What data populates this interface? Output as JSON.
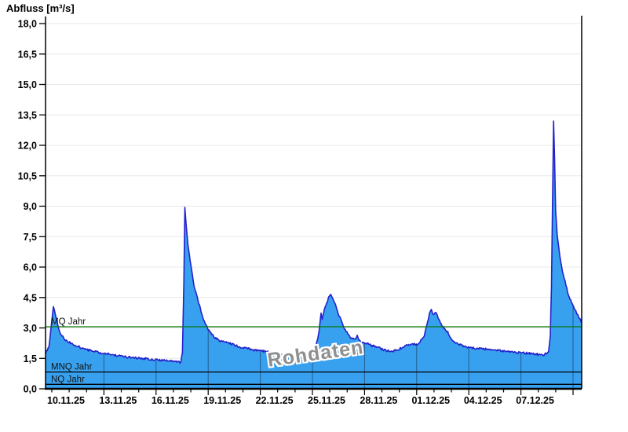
{
  "watermark": "Rohdaten",
  "colors": {
    "background": "#ffffff",
    "grid_horizontal": "#e8e8e8",
    "axis": "#000000",
    "area_fill": "#38a1ef",
    "area_line": "#2222cc",
    "inner_vertical_line": "#1b3f63",
    "mq_line_green": "#067806",
    "reference_black": "#000000",
    "watermark_gray": "#8f8f8f"
  },
  "chart_data": {
    "type": "area",
    "title": "Abfluss [m³/s]",
    "ylabel": "Abfluss [m³/s]",
    "xlabel": "",
    "ylim": [
      0,
      18
    ],
    "y_tick_step": 1.5,
    "y_tick_labels": [
      "0,0",
      "1,5",
      "3,0",
      "4,5",
      "6,0",
      "7,5",
      "9,0",
      "10,5",
      "12,0",
      "13,5",
      "15,0",
      "16,5",
      "18,0"
    ],
    "x_tick_labels": [
      "10.11.25",
      "13.11.25",
      "16.11.25",
      "19.11.25",
      "22.11.25",
      "25.11.25",
      "28.11.25",
      "01.12.25",
      "04.12.25",
      "07.12.25"
    ],
    "x_label_spacing_days": 3,
    "x_days_total": 30.86,
    "grid": "horizontal-only",
    "legend": "none",
    "reference_lines": [
      {
        "label": "MQ Jahr",
        "value": 3.06,
        "color": "#067806"
      },
      {
        "label": "MNQ Jahr",
        "value": 0.83,
        "color": "#000000"
      },
      {
        "label": "NQ Jahr",
        "value": 0.22,
        "color": "#000000"
      }
    ],
    "series": [
      {
        "name": "Abfluss",
        "unit": "m³/s",
        "points": [
          [
            0,
            1.75
          ],
          [
            0.2,
            2.1
          ],
          [
            0.32,
            3.0
          ],
          [
            0.45,
            4.05
          ],
          [
            0.55,
            3.7
          ],
          [
            0.68,
            3.2
          ],
          [
            0.8,
            2.85
          ],
          [
            0.95,
            2.6
          ],
          [
            1.1,
            2.45
          ],
          [
            1.35,
            2.3
          ],
          [
            1.7,
            2.15
          ],
          [
            2.1,
            2.0
          ],
          [
            2.6,
            1.87
          ],
          [
            3.1,
            1.78
          ],
          [
            3.7,
            1.7
          ],
          [
            4.4,
            1.6
          ],
          [
            5.1,
            1.52
          ],
          [
            5.9,
            1.47
          ],
          [
            6.7,
            1.42
          ],
          [
            7.3,
            1.37
          ],
          [
            7.6,
            1.33
          ],
          [
            7.78,
            1.32
          ],
          [
            7.88,
            1.8
          ],
          [
            7.96,
            5.2
          ],
          [
            8.02,
            8.97
          ],
          [
            8.1,
            8.0
          ],
          [
            8.2,
            7.1
          ],
          [
            8.32,
            6.35
          ],
          [
            8.45,
            5.65
          ],
          [
            8.55,
            5.1
          ],
          [
            8.65,
            4.8
          ],
          [
            8.78,
            4.35
          ],
          [
            8.9,
            4.0
          ],
          [
            9.05,
            3.5
          ],
          [
            9.25,
            3.1
          ],
          [
            9.42,
            2.85
          ],
          [
            9.65,
            2.6
          ],
          [
            9.85,
            2.45
          ],
          [
            10.1,
            2.35
          ],
          [
            10.45,
            2.3
          ],
          [
            10.75,
            2.2
          ],
          [
            11.05,
            2.1
          ],
          [
            11.5,
            2.0
          ],
          [
            12.1,
            1.9
          ],
          [
            12.75,
            1.82
          ],
          [
            13.3,
            1.75
          ],
          [
            13.9,
            1.7
          ],
          [
            14.5,
            1.65
          ],
          [
            15.0,
            1.63
          ],
          [
            15.25,
            1.65
          ],
          [
            15.45,
            1.9
          ],
          [
            15.62,
            2.3
          ],
          [
            15.75,
            2.9
          ],
          [
            15.86,
            3.75
          ],
          [
            15.92,
            3.4
          ],
          [
            16.05,
            3.9
          ],
          [
            16.18,
            4.2
          ],
          [
            16.3,
            4.5
          ],
          [
            16.4,
            4.63
          ],
          [
            16.52,
            4.45
          ],
          [
            16.67,
            4.15
          ],
          [
            16.8,
            3.85
          ],
          [
            16.95,
            3.5
          ],
          [
            17.1,
            3.2
          ],
          [
            17.25,
            2.9
          ],
          [
            17.45,
            2.65
          ],
          [
            17.6,
            2.5
          ],
          [
            17.8,
            2.4
          ],
          [
            17.94,
            2.62
          ],
          [
            18.05,
            2.35
          ],
          [
            18.25,
            2.28
          ],
          [
            18.6,
            2.2
          ],
          [
            19.05,
            2.05
          ],
          [
            19.5,
            1.92
          ],
          [
            19.85,
            1.85
          ],
          [
            20.2,
            1.9
          ],
          [
            20.55,
            2.05
          ],
          [
            20.85,
            2.15
          ],
          [
            21.1,
            2.22
          ],
          [
            21.35,
            2.18
          ],
          [
            21.55,
            2.3
          ],
          [
            21.8,
            2.6
          ],
          [
            21.95,
            3.15
          ],
          [
            22.1,
            3.7
          ],
          [
            22.2,
            3.88
          ],
          [
            22.32,
            3.65
          ],
          [
            22.42,
            3.8
          ],
          [
            22.55,
            3.6
          ],
          [
            22.68,
            3.35
          ],
          [
            22.9,
            3.0
          ],
          [
            23.15,
            2.8
          ],
          [
            23.36,
            2.45
          ],
          [
            23.6,
            2.3
          ],
          [
            23.95,
            2.15
          ],
          [
            24.3,
            2.05
          ],
          [
            24.7,
            2.0
          ],
          [
            25.2,
            1.97
          ],
          [
            25.6,
            1.92
          ],
          [
            26.3,
            1.87
          ],
          [
            27.0,
            1.8
          ],
          [
            27.7,
            1.75
          ],
          [
            28.3,
            1.7
          ],
          [
            28.7,
            1.68
          ],
          [
            28.95,
            1.8
          ],
          [
            29.05,
            2.6
          ],
          [
            29.12,
            5.0
          ],
          [
            29.18,
            9.0
          ],
          [
            29.24,
            13.2
          ],
          [
            29.3,
            11.3
          ],
          [
            29.36,
            8.8
          ],
          [
            29.45,
            7.6
          ],
          [
            29.55,
            6.9
          ],
          [
            29.7,
            6.0
          ],
          [
            29.9,
            5.3
          ],
          [
            30.1,
            4.6
          ],
          [
            30.35,
            4.1
          ],
          [
            30.6,
            3.7
          ],
          [
            30.86,
            3.25
          ]
        ]
      }
    ]
  }
}
